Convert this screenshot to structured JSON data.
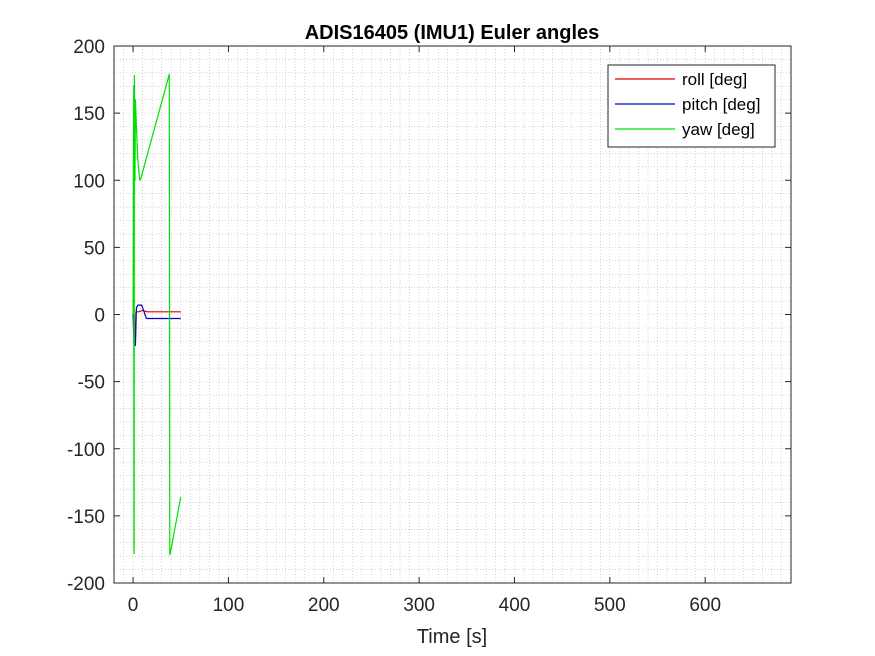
{
  "chart_data": {
    "type": "line",
    "title": "ADIS16405 (IMU1) Euler angles",
    "xlabel": "Time [s]",
    "ylabel": "",
    "xlim": [
      -20,
      690
    ],
    "ylim": [
      -200,
      200
    ],
    "xticks": [
      0,
      100,
      200,
      300,
      400,
      500,
      600
    ],
    "yticks": [
      -200,
      -150,
      -100,
      -50,
      0,
      50,
      100,
      150,
      200
    ],
    "grid": "minor dotted",
    "legend_position": "top-right",
    "series": [
      {
        "name": "roll [deg]",
        "color": "#e00000",
        "points": [
          [
            0,
            0
          ],
          [
            0.5,
            1
          ],
          [
            1.2,
            -1
          ],
          [
            2,
            -21
          ],
          [
            3,
            2
          ],
          [
            6,
            2
          ],
          [
            10,
            3
          ],
          [
            15,
            2
          ],
          [
            30,
            2
          ],
          [
            50,
            2
          ]
        ]
      },
      {
        "name": "pitch [deg]",
        "color": "#0000d0",
        "points": [
          [
            0,
            0
          ],
          [
            1,
            -23
          ],
          [
            2.5,
            -23
          ],
          [
            3.5,
            5
          ],
          [
            5,
            7
          ],
          [
            9,
            7
          ],
          [
            11,
            3
          ],
          [
            14,
            -3
          ],
          [
            30,
            -3
          ],
          [
            50,
            -3
          ]
        ]
      },
      {
        "name": "yaw [deg]",
        "color": "#00e000",
        "points": [
          [
            0,
            0
          ],
          [
            0.3,
            110
          ],
          [
            0.7,
            170
          ],
          [
            0.9,
            -170
          ],
          [
            1.1,
            -178
          ],
          [
            1.4,
            178
          ],
          [
            2,
            100
          ],
          [
            2.5,
            160
          ],
          [
            3.5,
            140
          ],
          [
            5,
            115
          ],
          [
            7,
            100
          ],
          [
            8,
            101
          ],
          [
            38,
            179
          ],
          [
            38.5,
            -179
          ],
          [
            39,
            -178
          ],
          [
            50,
            -136
          ]
        ]
      }
    ]
  }
}
